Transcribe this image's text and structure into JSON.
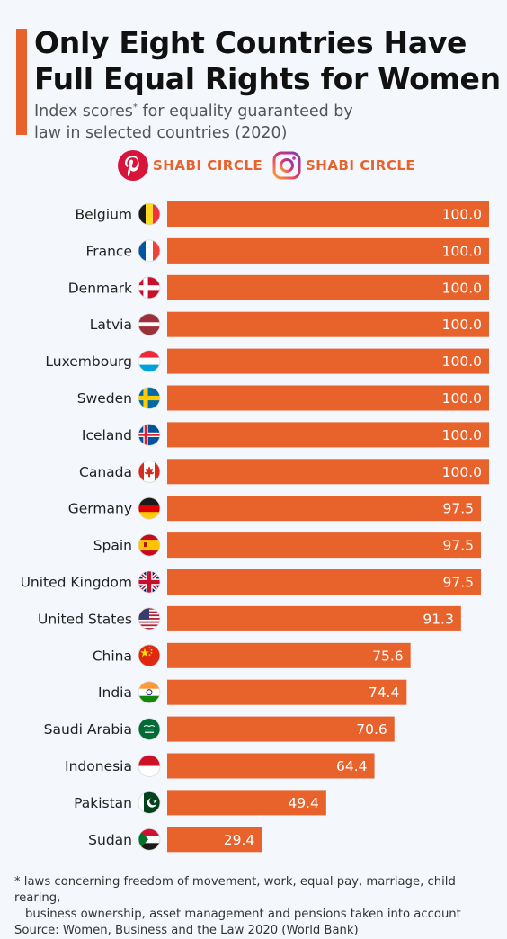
{
  "header": {
    "title_line1": "Only Eight Countries Have",
    "title_line2": "Full Equal Rights for Women",
    "subtitle_pre": "Index scores",
    "subtitle_mark": "*",
    "subtitle_post": " for equality guaranteed by law in selected countries (2020)"
  },
  "branding": {
    "pinterest_text": "SHABI CIRCLE",
    "instagram_text": "SHABI CIRCLE",
    "pinterest_color": "#d7143a",
    "instagram_color": "#c13584"
  },
  "footer": {
    "note_line1": "* laws concerning freedom of movement, work, equal pay, marriage, child rearing,",
    "note_line2": "business ownership, asset management and pensions taken into account",
    "source": "Source: Women, Business and the Law 2020 (World Bank)"
  },
  "colors": {
    "bar": "#e8622c",
    "accent": "#e8622c",
    "background": "#f4f7fb"
  },
  "chart_data": {
    "type": "bar",
    "orientation": "horizontal",
    "categories": [
      "Belgium",
      "France",
      "Denmark",
      "Latvia",
      "Luxembourg",
      "Sweden",
      "Iceland",
      "Canada",
      "Germany",
      "Spain",
      "United Kingdom",
      "United States",
      "China",
      "India",
      "Saudi Arabia",
      "Indonesia",
      "Pakistan",
      "Sudan"
    ],
    "values": [
      100.0,
      100.0,
      100.0,
      100.0,
      100.0,
      100.0,
      100.0,
      100.0,
      97.5,
      97.5,
      97.5,
      91.3,
      75.6,
      74.4,
      70.6,
      64.4,
      49.4,
      29.4
    ],
    "value_labels": [
      "100.0",
      "100.0",
      "100.0",
      "100.0",
      "100.0",
      "100.0",
      "100.0",
      "100.0",
      "97.5",
      "97.5",
      "97.5",
      "91.3",
      "75.6",
      "74.4",
      "70.6",
      "64.4",
      "49.4",
      "29.4"
    ],
    "flags": [
      "belgium-flag-icon",
      "france-flag-icon",
      "denmark-flag-icon",
      "latvia-flag-icon",
      "luxembourg-flag-icon",
      "sweden-flag-icon",
      "iceland-flag-icon",
      "canada-flag-icon",
      "germany-flag-icon",
      "spain-flag-icon",
      "uk-flag-icon",
      "usa-flag-icon",
      "china-flag-icon",
      "india-flag-icon",
      "saudi-arabia-flag-icon",
      "indonesia-flag-icon",
      "pakistan-flag-icon",
      "sudan-flag-icon"
    ],
    "xlim": [
      0,
      100
    ],
    "grid": false
  }
}
